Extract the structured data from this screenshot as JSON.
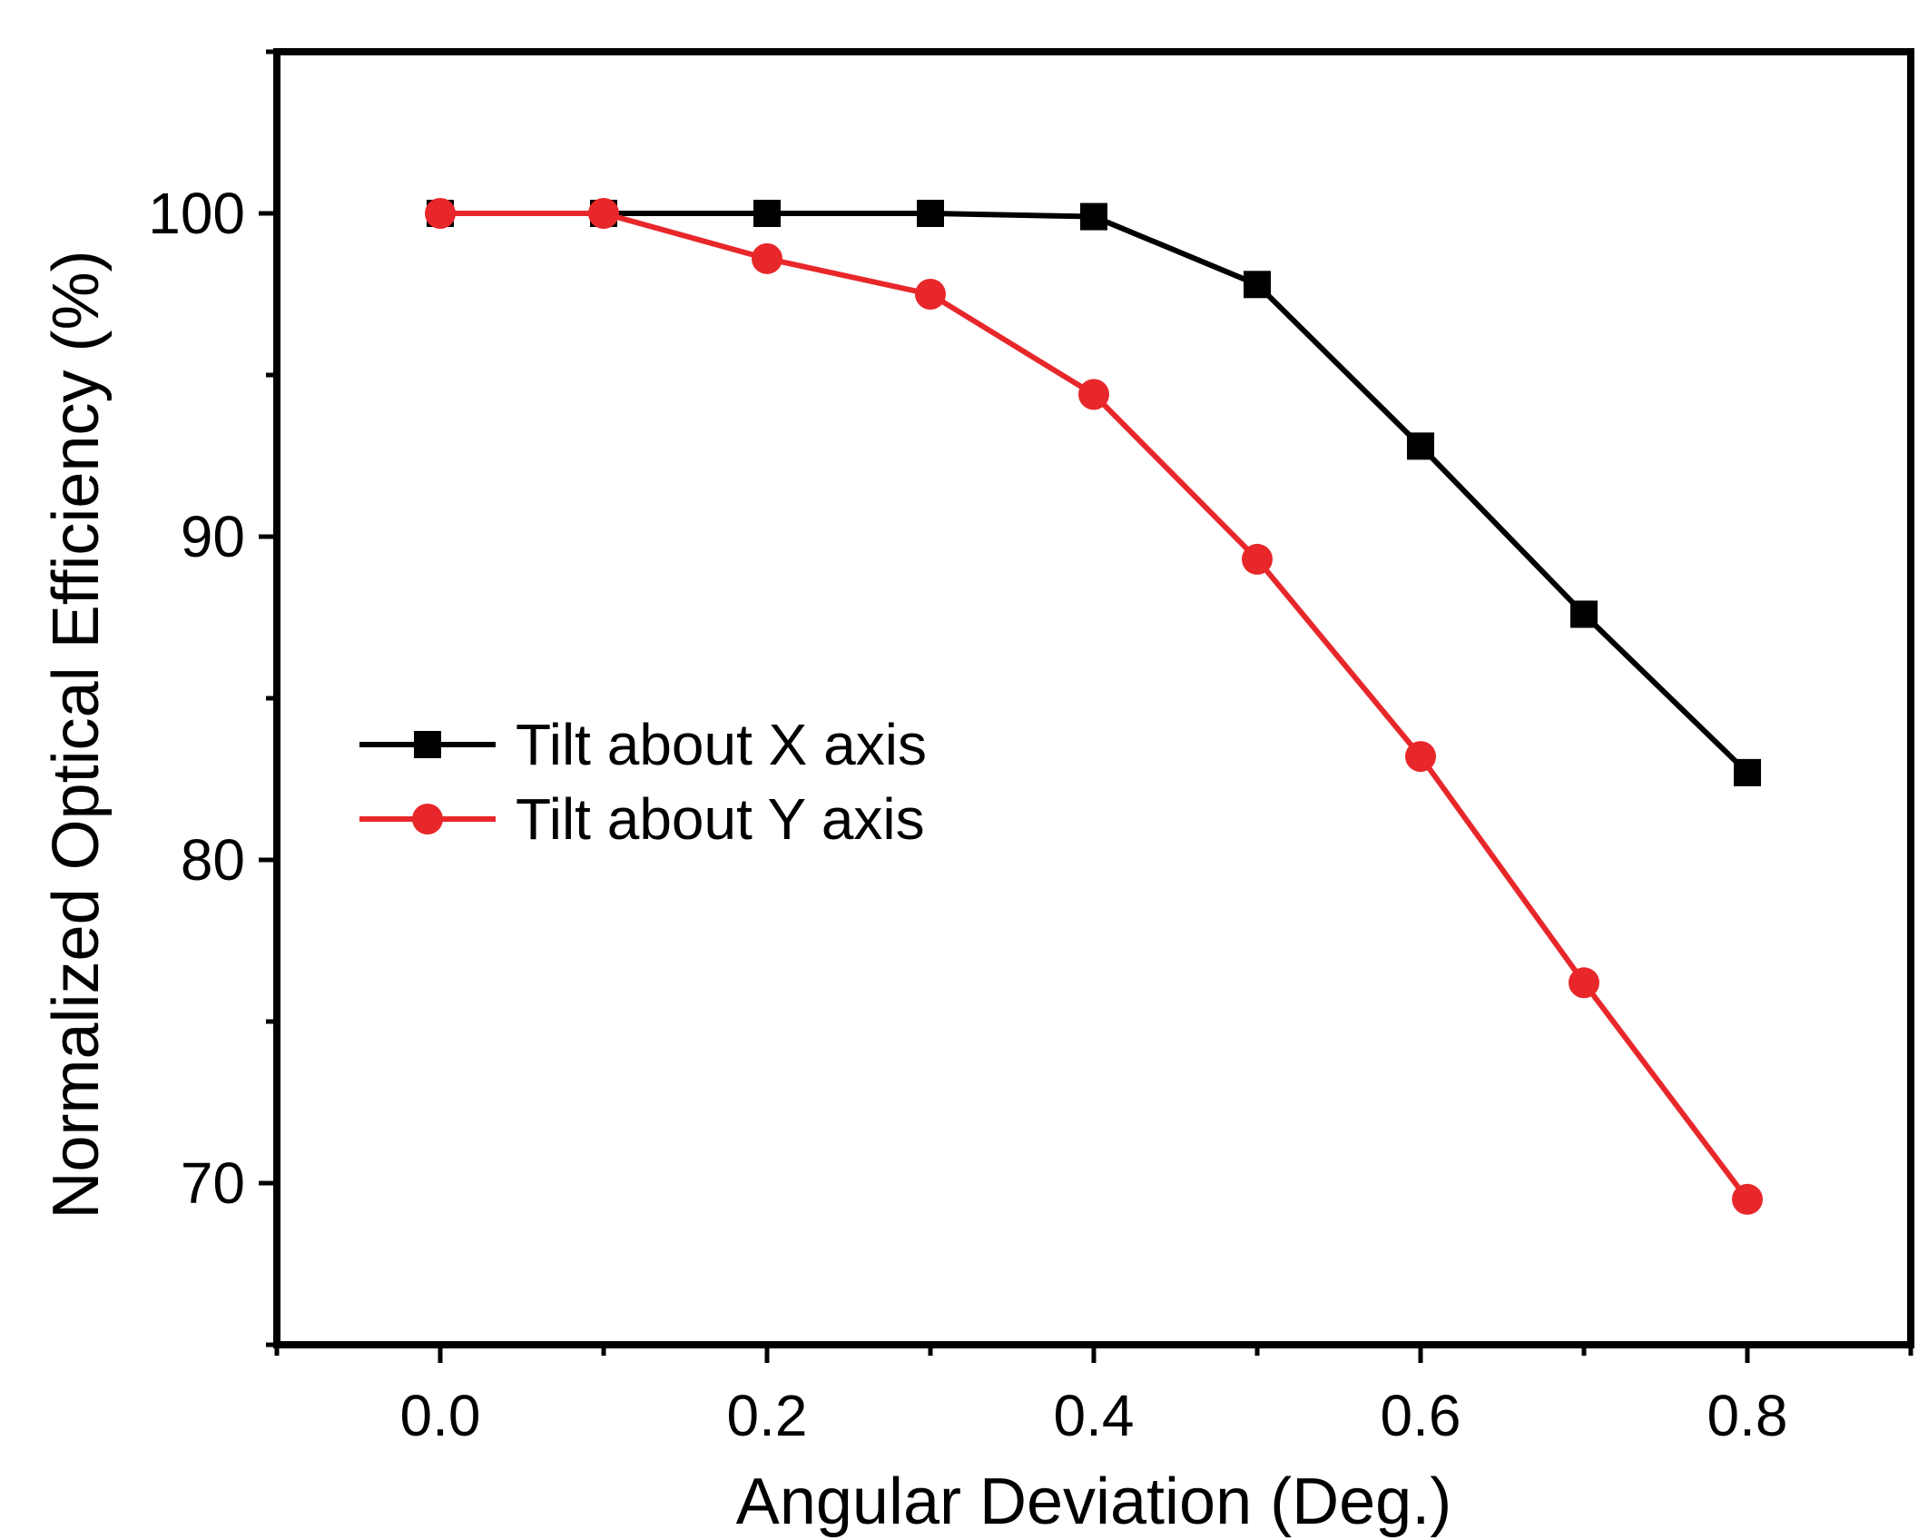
{
  "chart_data": {
    "type": "line",
    "title": "",
    "xlabel": "Angular Deviation (Deg.)",
    "ylabel": "Normalized Optical Efficiency (%)",
    "xlim": [
      -0.1,
      0.9
    ],
    "ylim": [
      65,
      105
    ],
    "x_ticks": [
      0.0,
      0.2,
      0.4,
      0.6,
      0.8
    ],
    "x_tick_labels": [
      "0.0",
      "0.2",
      "0.4",
      "0.6",
      "0.8"
    ],
    "x_minor_ticks": [
      -0.1,
      0.1,
      0.3,
      0.5,
      0.7,
      0.9
    ],
    "y_ticks": [
      70,
      80,
      90,
      100
    ],
    "y_tick_labels": [
      "70",
      "80",
      "90",
      "100"
    ],
    "y_minor_ticks": [
      65,
      75,
      85,
      95,
      105
    ],
    "grid": false,
    "legend_position": "center-left",
    "x": [
      0.0,
      0.1,
      0.2,
      0.3,
      0.4,
      0.5,
      0.6,
      0.7,
      0.8
    ],
    "series": [
      {
        "name": "Tilt about X axis",
        "color": "#000000",
        "marker": "square",
        "values": [
          100.0,
          100.0,
          100.0,
          100.0,
          99.9,
          97.8,
          92.8,
          87.6,
          82.7
        ]
      },
      {
        "name": "Tilt about Y axis",
        "color": "#e8272b",
        "marker": "circle",
        "values": [
          100.0,
          100.0,
          98.6,
          97.5,
          94.4,
          89.3,
          83.2,
          76.2,
          69.5
        ]
      }
    ]
  }
}
